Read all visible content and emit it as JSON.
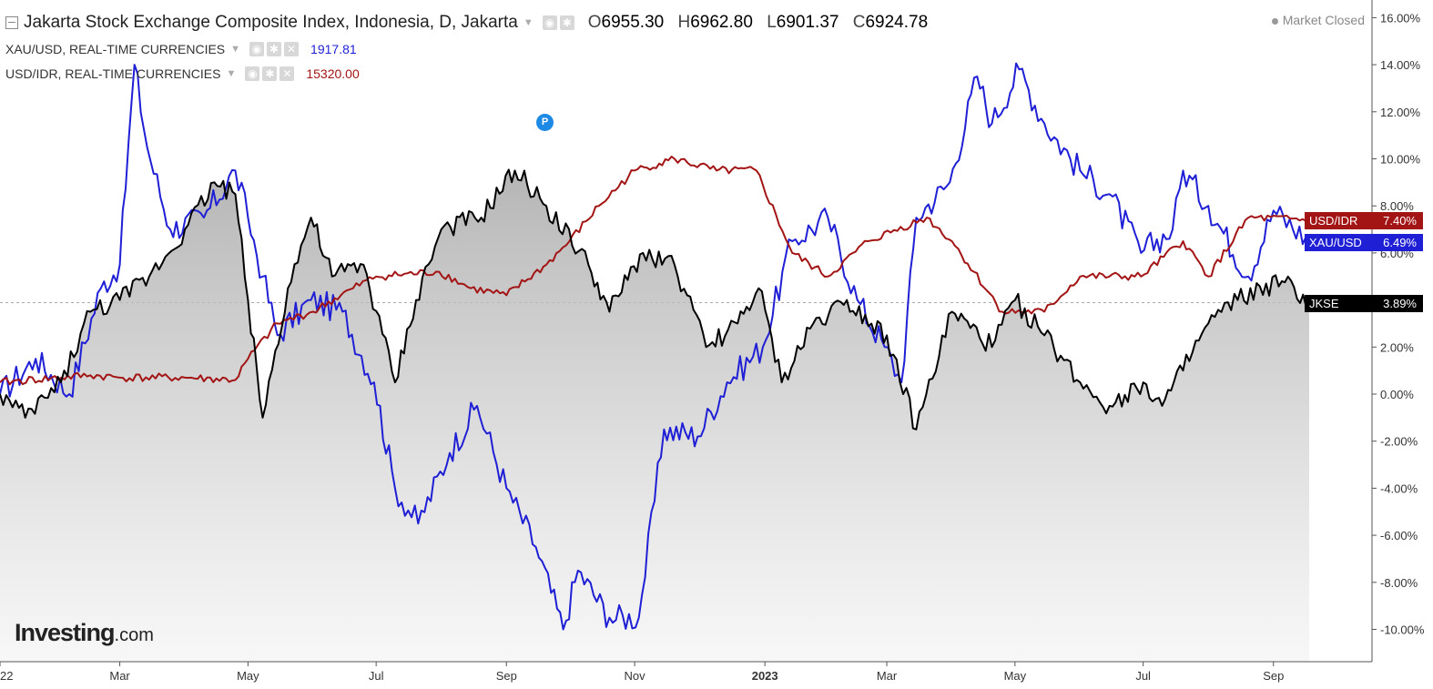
{
  "header": {
    "title": "Jakarta Stock Exchange Composite Index, Indonesia, D, Jakarta",
    "ohlc": [
      {
        "k": "O",
        "v": "6955.30"
      },
      {
        "k": "H",
        "v": "6962.80"
      },
      {
        "k": "L",
        "v": "6901.37"
      },
      {
        "k": "C",
        "v": "6924.78"
      }
    ],
    "market_status": "Market Closed"
  },
  "legend": [
    {
      "name": "XAU/USD, REAL-TIME CURRENCIES",
      "value": "1917.81",
      "color": "#1f1fd6"
    },
    {
      "name": "USD/IDR, REAL-TIME CURRENCIES",
      "value": "15320.00",
      "color": "#a31515"
    }
  ],
  "event_marker": "P",
  "logo": {
    "main": "Investing",
    "suffix": ".com"
  },
  "chart_data": {
    "type": "line",
    "yunit": "%",
    "ylim": [
      -11,
      16
    ],
    "y_ticks": [
      "16.00%",
      "14.00%",
      "12.00%",
      "10.00%",
      "8.00%",
      "6.00%",
      "4.00%",
      "2.00%",
      "0.00%",
      "-2.00%",
      "-4.00%",
      "-6.00%",
      "-8.00%",
      "-10.00%"
    ],
    "x_ticks": [
      "22",
      "Mar",
      "May",
      "Jul",
      "Sep",
      "Nov",
      "2023",
      "Mar",
      "May",
      "Jul",
      "Sep"
    ],
    "x_tick_dates": [
      "2022-01-03",
      "2022-03-01",
      "2022-05-01",
      "2022-07-01",
      "2022-09-01",
      "2022-11-01",
      "2023-01-02",
      "2023-03-01",
      "2023-05-01",
      "2023-07-01",
      "2023-09-01"
    ],
    "x_range": [
      "2022-01-03",
      "2023-09-18"
    ],
    "reference_line": 3.89,
    "series": [
      {
        "name": "XAU/USD",
        "color": "#1f1fd6",
        "end_label": "6.49%",
        "points": [
          [
            "2022-01-03",
            0.0
          ],
          [
            "2022-01-20",
            1.5
          ],
          [
            "2022-02-05",
            0.0
          ],
          [
            "2022-02-20",
            4.5
          ],
          [
            "2022-03-01",
            5.5
          ],
          [
            "2022-03-08",
            14.0
          ],
          [
            "2022-03-14",
            10.5
          ],
          [
            "2022-03-25",
            7.0
          ],
          [
            "2022-04-10",
            7.5
          ],
          [
            "2022-04-25",
            9.5
          ],
          [
            "2022-05-01",
            7.5
          ],
          [
            "2022-05-08",
            5.0
          ],
          [
            "2022-05-15",
            2.5
          ],
          [
            "2022-05-31",
            4.0
          ],
          [
            "2022-06-15",
            3.5
          ],
          [
            "2022-06-30",
            0.5
          ],
          [
            "2022-07-10",
            -4.0
          ],
          [
            "2022-07-21",
            -5.5
          ],
          [
            "2022-08-05",
            -2.5
          ],
          [
            "2022-08-18",
            -0.5
          ],
          [
            "2022-09-01",
            -4.0
          ],
          [
            "2022-09-15",
            -6.5
          ],
          [
            "2022-09-28",
            -10.0
          ],
          [
            "2022-10-05",
            -7.5
          ],
          [
            "2022-10-20",
            -9.5
          ],
          [
            "2022-11-03",
            -9.5
          ],
          [
            "2022-11-15",
            -1.5
          ],
          [
            "2022-12-01",
            -1.8
          ],
          [
            "2022-12-15",
            0.5
          ],
          [
            "2023-01-01",
            2.0
          ],
          [
            "2023-01-15",
            6.5
          ],
          [
            "2023-02-01",
            7.5
          ],
          [
            "2023-02-15",
            4.0
          ],
          [
            "2023-02-28",
            2.0
          ],
          [
            "2023-03-08",
            0.5
          ],
          [
            "2023-03-15",
            7.5
          ],
          [
            "2023-03-31",
            9.0
          ],
          [
            "2023-04-13",
            13.5
          ],
          [
            "2023-04-20",
            11.5
          ],
          [
            "2023-05-03",
            13.8
          ],
          [
            "2023-05-15",
            11.5
          ],
          [
            "2023-06-01",
            9.5
          ],
          [
            "2023-06-15",
            8.5
          ],
          [
            "2023-06-30",
            6.0
          ],
          [
            "2023-07-15",
            7.0
          ],
          [
            "2023-07-20",
            9.5
          ],
          [
            "2023-08-01",
            8.0
          ],
          [
            "2023-08-20",
            5.0
          ],
          [
            "2023-09-01",
            7.8
          ],
          [
            "2023-09-18",
            6.49
          ]
        ]
      },
      {
        "name": "USD/IDR",
        "color": "#a31515",
        "end_label": "7.40%",
        "points": [
          [
            "2022-01-03",
            0.5
          ],
          [
            "2022-02-15",
            0.8
          ],
          [
            "2022-03-01",
            0.7
          ],
          [
            "2022-04-01",
            0.7
          ],
          [
            "2022-04-25",
            0.6
          ],
          [
            "2022-05-01",
            1.5
          ],
          [
            "2022-05-15",
            3.0
          ],
          [
            "2022-06-01",
            3.5
          ],
          [
            "2022-06-20",
            4.5
          ],
          [
            "2022-07-01",
            5.0
          ],
          [
            "2022-07-31",
            5.2
          ],
          [
            "2022-08-15",
            4.5
          ],
          [
            "2022-09-01",
            4.2
          ],
          [
            "2022-09-20",
            5.5
          ],
          [
            "2022-10-01",
            6.5
          ],
          [
            "2022-10-15",
            8.0
          ],
          [
            "2022-11-01",
            9.5
          ],
          [
            "2022-11-20",
            10.0
          ],
          [
            "2022-12-10",
            9.5
          ],
          [
            "2022-12-29",
            9.5
          ],
          [
            "2023-01-15",
            6.0
          ],
          [
            "2023-02-01",
            5.0
          ],
          [
            "2023-02-20",
            6.5
          ],
          [
            "2023-03-20",
            7.5
          ],
          [
            "2023-04-01",
            6.5
          ],
          [
            "2023-04-25",
            3.5
          ],
          [
            "2023-05-15",
            3.5
          ],
          [
            "2023-06-01",
            5.0
          ],
          [
            "2023-06-30",
            5.0
          ],
          [
            "2023-07-20",
            6.5
          ],
          [
            "2023-08-01",
            5.0
          ],
          [
            "2023-08-20",
            7.5
          ],
          [
            "2023-09-18",
            7.4
          ]
        ]
      },
      {
        "name": "JKSE",
        "color": "#000000",
        "end_label": "3.89%",
        "area": true,
        "points": [
          [
            "2022-01-03",
            0.0
          ],
          [
            "2022-01-15",
            -1.0
          ],
          [
            "2022-02-01",
            0.5
          ],
          [
            "2022-02-15",
            3.5
          ],
          [
            "2022-03-01",
            4.0
          ],
          [
            "2022-03-15",
            5.0
          ],
          [
            "2022-04-01",
            7.0
          ],
          [
            "2022-04-15",
            9.0
          ],
          [
            "2022-04-25",
            8.5
          ],
          [
            "2022-05-01",
            4.0
          ],
          [
            "2022-05-08",
            -1.0
          ],
          [
            "2022-05-20",
            4.5
          ],
          [
            "2022-05-31",
            7.5
          ],
          [
            "2022-06-10",
            5.0
          ],
          [
            "2022-06-25",
            5.5
          ],
          [
            "2022-07-10",
            0.5
          ],
          [
            "2022-07-20",
            4.0
          ],
          [
            "2022-08-01",
            7.0
          ],
          [
            "2022-08-20",
            7.5
          ],
          [
            "2022-09-05",
            9.5
          ],
          [
            "2022-09-20",
            8.0
          ],
          [
            "2022-10-10",
            5.5
          ],
          [
            "2022-10-20",
            3.5
          ],
          [
            "2022-11-05",
            6.0
          ],
          [
            "2022-11-20",
            5.5
          ],
          [
            "2022-12-05",
            2.0
          ],
          [
            "2022-12-20",
            3.0
          ],
          [
            "2022-12-30",
            4.5
          ],
          [
            "2023-01-10",
            0.5
          ],
          [
            "2023-01-25",
            3.0
          ],
          [
            "2023-02-10",
            4.0
          ],
          [
            "2023-03-01",
            2.5
          ],
          [
            "2023-03-15",
            -1.5
          ],
          [
            "2023-04-01",
            3.5
          ],
          [
            "2023-04-20",
            2.0
          ],
          [
            "2023-05-01",
            4.0
          ],
          [
            "2023-05-15",
            2.5
          ],
          [
            "2023-06-01",
            0.5
          ],
          [
            "2023-06-15",
            -0.5
          ],
          [
            "2023-07-01",
            0.5
          ],
          [
            "2023-07-10",
            -0.5
          ],
          [
            "2023-07-20",
            1.0
          ],
          [
            "2023-08-01",
            3.0
          ],
          [
            "2023-08-15",
            4.0
          ],
          [
            "2023-09-05",
            4.8
          ],
          [
            "2023-09-18",
            3.89
          ]
        ]
      }
    ]
  }
}
